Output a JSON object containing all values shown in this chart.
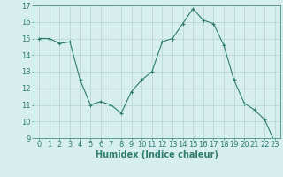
{
  "x": [
    0,
    1,
    2,
    3,
    4,
    5,
    6,
    7,
    8,
    9,
    10,
    11,
    12,
    13,
    14,
    15,
    16,
    17,
    18,
    19,
    20,
    21,
    22,
    23
  ],
  "y": [
    15.0,
    15.0,
    14.7,
    14.8,
    12.5,
    11.0,
    11.2,
    11.0,
    10.5,
    11.8,
    12.5,
    13.0,
    14.8,
    15.0,
    15.9,
    16.8,
    16.1,
    15.9,
    14.6,
    12.5,
    11.1,
    10.7,
    10.1,
    8.7
  ],
  "line_color": "#2e7d6e",
  "marker": "+",
  "marker_size": 3,
  "bg_color": "#d6eeee",
  "grid_color": "#b8d4d4",
  "xlabel": "Humidex (Indice chaleur)",
  "ylim": [
    9,
    17
  ],
  "xlim": [
    -0.5,
    23.5
  ],
  "yticks": [
    9,
    10,
    11,
    12,
    13,
    14,
    15,
    16,
    17
  ],
  "xticks": [
    0,
    1,
    2,
    3,
    4,
    5,
    6,
    7,
    8,
    9,
    10,
    11,
    12,
    13,
    14,
    15,
    16,
    17,
    18,
    19,
    20,
    21,
    22,
    23
  ],
  "tick_color": "#2e7d6e",
  "label_color": "#2e7d6e",
  "font_size": 6,
  "xlabel_font_size": 7,
  "linewidth": 0.8,
  "markeredgewidth": 0.8
}
